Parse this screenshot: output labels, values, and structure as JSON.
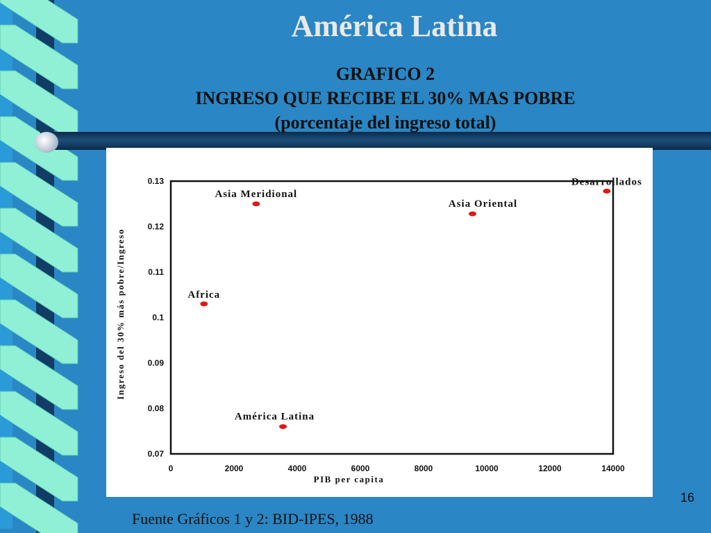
{
  "slide": {
    "title": "América Latina",
    "subtitle_line1": "GRAFICO 2",
    "subtitle_line2": "INGRESO QUE RECIBE EL 30% MAS POBRE",
    "subtitle_line3": "(porcentaje del ingreso total)",
    "source": "Fuente Gráficos 1 y 2:  BID-IPES, 1988",
    "page_number": "16"
  },
  "colors": {
    "background": "#2a86c4",
    "point": "#e01818",
    "ribbon_light": "#8ff0d6",
    "ribbon_dark": "#103c66"
  },
  "chart_data": {
    "type": "scatter",
    "xlabel": "PIB per capita",
    "ylabel": "Ingreso del 30% más pobre/Ingreso",
    "xlim": [
      0,
      14000
    ],
    "ylim": [
      0.07,
      0.13
    ],
    "xticks": [
      "0",
      "2000",
      "4000",
      "6000",
      "8000",
      "10000",
      "12000",
      "14000"
    ],
    "yticks": [
      "0.07",
      "0.08",
      "0.09",
      "0.1",
      "0.11",
      "0.12",
      "0.13"
    ],
    "grid": false,
    "points": [
      {
        "label": "Africa",
        "x": 1050,
        "y": 0.103
      },
      {
        "label": "Asia Meridional",
        "x": 2700,
        "y": 0.125
      },
      {
        "label": "América Latina",
        "x": 3550,
        "y": 0.076
      },
      {
        "label": "Asia Oriental",
        "x": 9550,
        "y": 0.1228
      },
      {
        "label": "Desarrollados",
        "x": 13800,
        "y": 0.1278
      }
    ]
  }
}
